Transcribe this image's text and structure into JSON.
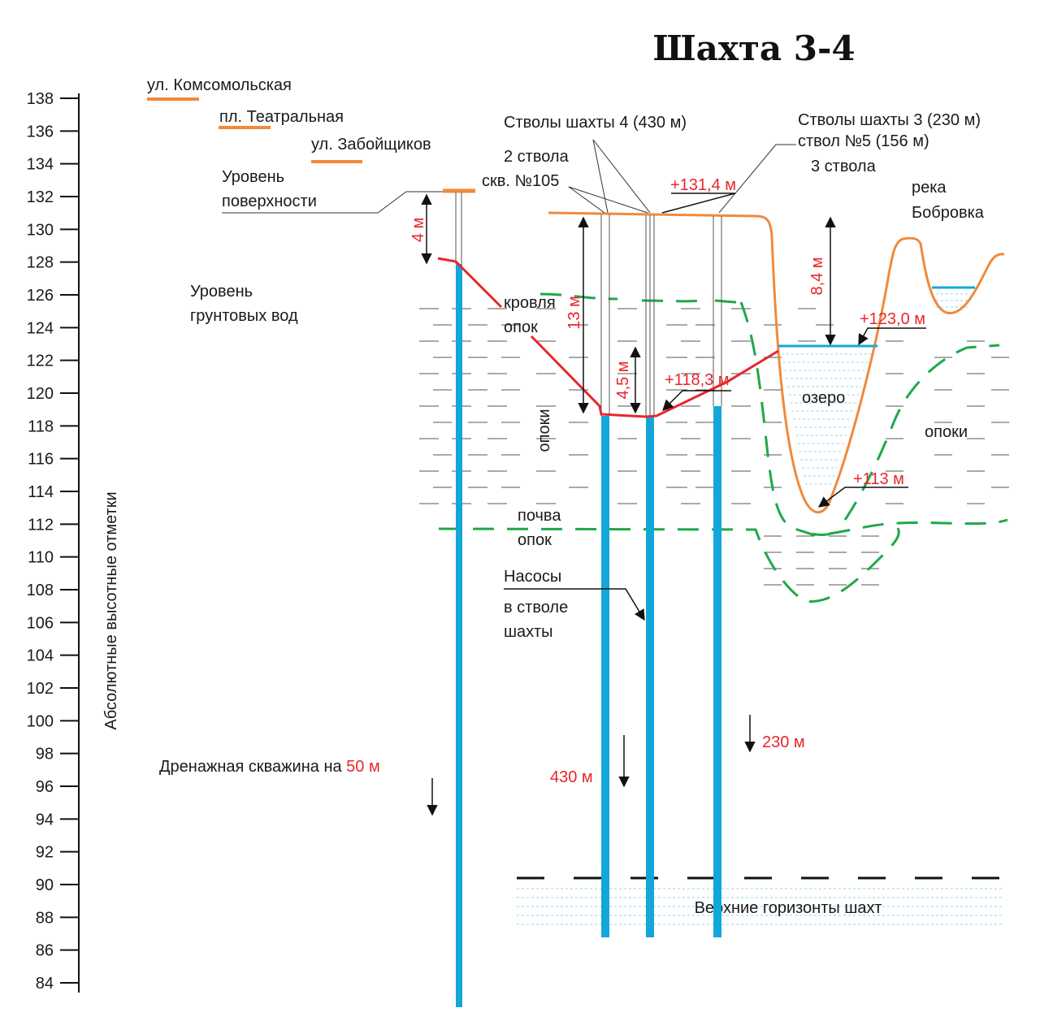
{
  "title": "Шахта 3-4",
  "axis": {
    "label": "Абсолютные высотные отметки",
    "min": 84,
    "max": 138,
    "step": 2
  },
  "colors": {
    "shaft": "#13a7d9",
    "ground": "#f08a3c",
    "rock_boundary": "#1fa84a",
    "roof_line": "#e8262b",
    "annotation": "#e8262b"
  },
  "streets": [
    {
      "name": "ул. Комсомольская"
    },
    {
      "name": "пл. Театральная"
    },
    {
      "name": "ул. Забойщиков"
    }
  ],
  "labels": {
    "surface_level": [
      "Уровень",
      "поверхности"
    ],
    "groundwater_level": [
      "Уровень",
      "грунтовых вод"
    ],
    "shafts4": "Стволы шахты 4 (430 м)",
    "shafts4_count": "2 ствола",
    "well105": "скв. №105",
    "shafts3": "Стволы шахты 3 (230 м)",
    "shaft5": "ствол №5 (156 м)",
    "shafts3_count": "3 ствола",
    "river": [
      "река",
      "Бобровка"
    ],
    "roof": [
      "кровля",
      "опок"
    ],
    "opoki_left": "опоки",
    "opoki_right": "опоки",
    "sole": [
      "почва",
      "опок"
    ],
    "lake": "озеро",
    "pumps": [
      "Насосы",
      "в стволе",
      "шахты"
    ],
    "drainage_text": "Дренажная скважина на ",
    "drainage_depth": "50 м",
    "upper_horizons": "Верхние горизонты шахт"
  },
  "annotations": {
    "surface_elev": "+131,4 м",
    "lake_level": "+123,0 м",
    "shaft_water": "+118,3 м",
    "lake_bottom": "+113 м",
    "d4": "4 м",
    "d13": "13 м",
    "d45": "4,5 м",
    "d84": "8,4 м",
    "depth430": "430 м",
    "depth230": "230 м"
  }
}
